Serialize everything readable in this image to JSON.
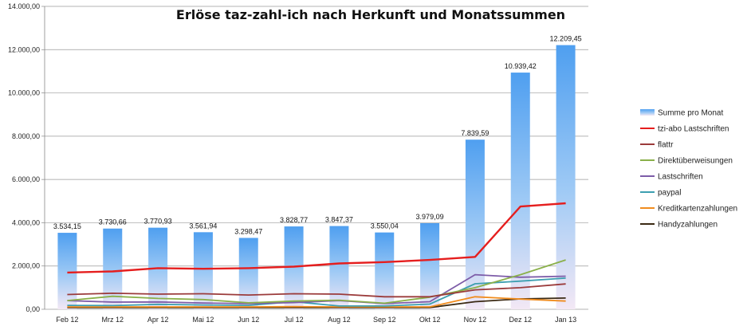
{
  "chart_data": {
    "type": "bar",
    "title": "Erlöse taz-zahl-ich nach Herkunft und Monatssummen",
    "xlabel": "",
    "ylabel": "",
    "categories": [
      "Feb 12",
      "Mrz 12",
      "Apr 12",
      "Mai 12",
      "Jun 12",
      "Jul 12",
      "Aug 12",
      "Sep 12",
      "Okt 12",
      "Nov 12",
      "Dez 12",
      "Jan 13"
    ],
    "ylim": [
      0,
      14000
    ],
    "yticks": [
      0,
      2000,
      4000,
      6000,
      8000,
      10000,
      12000,
      14000
    ],
    "ytick_labels": [
      "0,00",
      "2.000,00",
      "4.000,00",
      "6.000,00",
      "8.000,00",
      "10.000,00",
      "12.000,00",
      "14.000,00"
    ],
    "grid": "horizontal",
    "legend_position": "right",
    "bar_series": {
      "name": "Summe pro Monat",
      "color": "#5da6ee",
      "values": [
        3534.15,
        3730.66,
        3770.93,
        3561.94,
        3298.47,
        3828.77,
        3847.37,
        3550.04,
        3979.09,
        7839.59,
        10939.42,
        12209.45
      ],
      "labels": [
        "3.534,15",
        "3.730,66",
        "3.770,93",
        "3.561,94",
        "3.298,47",
        "3.828,77",
        "3.847,37",
        "3.550,04",
        "3.979,09",
        "7.839,59",
        "10.939,42",
        "12.209,45"
      ]
    },
    "series": [
      {
        "name": "tzi-abo Lastschriften",
        "color": "#e51e1e",
        "values": [
          1700,
          1750,
          1900,
          1870,
          1900,
          1970,
          2120,
          2180,
          2280,
          2420,
          4750,
          4900
        ]
      },
      {
        "name": "flattr",
        "color": "#9b3b3b",
        "values": [
          680,
          740,
          700,
          720,
          660,
          720,
          700,
          580,
          580,
          900,
          1000,
          1170
        ]
      },
      {
        "name": "Direktüberweisungen",
        "color": "#8ab04a",
        "values": [
          400,
          600,
          500,
          450,
          300,
          380,
          420,
          280,
          560,
          1000,
          1600,
          2280
        ]
      },
      {
        "name": "Lastschriften",
        "color": "#7d5ca8",
        "values": [
          400,
          330,
          340,
          290,
          260,
          310,
          400,
          260,
          350,
          1600,
          1480,
          1530
        ]
      },
      {
        "name": "paypal",
        "color": "#3d9fb0",
        "values": [
          180,
          170,
          230,
          200,
          180,
          350,
          150,
          150,
          240,
          1180,
          1300,
          1440
        ]
      },
      {
        "name": "Kreditkartenzahlungen",
        "color": "#f08c1e",
        "values": [
          110,
          110,
          110,
          110,
          110,
          120,
          110,
          110,
          110,
          580,
          470,
          380
        ]
      },
      {
        "name": "Handyzahlungen",
        "color": "#3b2a14",
        "values": [
          80,
          80,
          80,
          80,
          80,
          80,
          80,
          80,
          80,
          350,
          480,
          520
        ]
      }
    ]
  }
}
